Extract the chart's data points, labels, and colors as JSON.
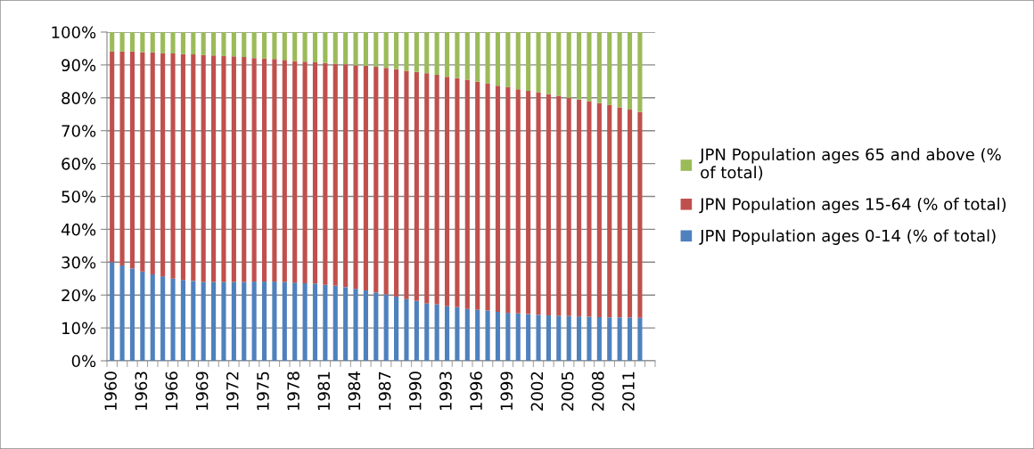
{
  "chart_data": {
    "type": "bar",
    "stacked": true,
    "categories": [
      "1960",
      null,
      null,
      "1963",
      null,
      null,
      "1966",
      null,
      null,
      "1969",
      null,
      null,
      "1972",
      null,
      null,
      "1975",
      null,
      null,
      "1978",
      null,
      null,
      "1981",
      null,
      null,
      "1984",
      null,
      null,
      "1987",
      null,
      null,
      "1990",
      null,
      null,
      "1993",
      null,
      null,
      "1996",
      null,
      null,
      "1999",
      null,
      null,
      "2002",
      null,
      null,
      "2005",
      null,
      null,
      "2008",
      null,
      null,
      "2011",
      null,
      null
    ],
    "series": [
      {
        "name": "JPN Population ages 0-14 (% of total)",
        "color": "#4f81bd",
        "values": [
          30.0,
          29.0,
          28.1,
          27.2,
          26.3,
          25.7,
          25.0,
          24.6,
          24.3,
          24.0,
          24.0,
          24.0,
          24.0,
          24.0,
          24.1,
          24.1,
          24.1,
          24.0,
          23.8,
          23.6,
          23.5,
          23.1,
          22.8,
          22.4,
          21.9,
          21.4,
          20.8,
          20.2,
          19.5,
          18.8,
          18.2,
          17.5,
          17.2,
          16.6,
          16.3,
          15.8,
          15.5,
          15.3,
          14.9,
          14.6,
          14.4,
          14.2,
          14.0,
          13.8,
          13.7,
          13.6,
          13.5,
          13.4,
          13.3,
          13.2,
          13.2,
          13.2,
          13.1,
          null
        ]
      },
      {
        "name": "JPN Population ages 15-64 (% of total)",
        "color": "#c0504d",
        "values": [
          64.1,
          65.1,
          66.0,
          66.7,
          67.5,
          67.9,
          68.5,
          68.7,
          68.9,
          69.0,
          68.9,
          68.7,
          68.6,
          68.4,
          68.0,
          67.8,
          67.7,
          67.5,
          67.4,
          67.4,
          67.3,
          67.5,
          67.6,
          67.8,
          68.0,
          68.3,
          68.6,
          68.9,
          69.2,
          69.4,
          69.7,
          70.0,
          69.8,
          69.8,
          69.7,
          69.7,
          69.4,
          69.1,
          68.8,
          68.7,
          68.2,
          67.9,
          67.7,
          67.3,
          66.9,
          66.4,
          66.0,
          65.6,
          65.1,
          64.6,
          63.9,
          63.2,
          62.6,
          null
        ]
      },
      {
        "name": "JPN Population ages 65 and above (% of total)",
        "color": "#9bbb59",
        "values": [
          5.9,
          5.9,
          5.9,
          6.1,
          6.2,
          6.4,
          6.5,
          6.7,
          6.8,
          7.0,
          7.1,
          7.3,
          7.4,
          7.6,
          7.9,
          8.1,
          8.2,
          8.5,
          8.8,
          9.0,
          9.2,
          9.4,
          9.6,
          9.8,
          10.1,
          10.3,
          10.6,
          10.9,
          11.3,
          11.8,
          12.1,
          12.5,
          13.0,
          13.6,
          14.0,
          14.5,
          15.1,
          15.6,
          16.3,
          16.7,
          17.4,
          17.9,
          18.3,
          18.9,
          19.4,
          20.0,
          20.5,
          21.0,
          21.6,
          22.2,
          22.9,
          23.6,
          24.3,
          null
        ]
      }
    ],
    "ylim": [
      0,
      100
    ],
    "yticks": [
      {
        "value": 0,
        "label": "0%"
      },
      {
        "value": 10,
        "label": "10%"
      },
      {
        "value": 20,
        "label": "20%"
      },
      {
        "value": 30,
        "label": "30%"
      },
      {
        "value": 40,
        "label": "40%"
      },
      {
        "value": 50,
        "label": "50%"
      },
      {
        "value": 60,
        "label": "60%"
      },
      {
        "value": 70,
        "label": "70%"
      },
      {
        "value": 80,
        "label": "80%"
      },
      {
        "value": 90,
        "label": "90%"
      },
      {
        "value": 100,
        "label": "100%"
      }
    ],
    "grid": "y",
    "legend": "right"
  }
}
